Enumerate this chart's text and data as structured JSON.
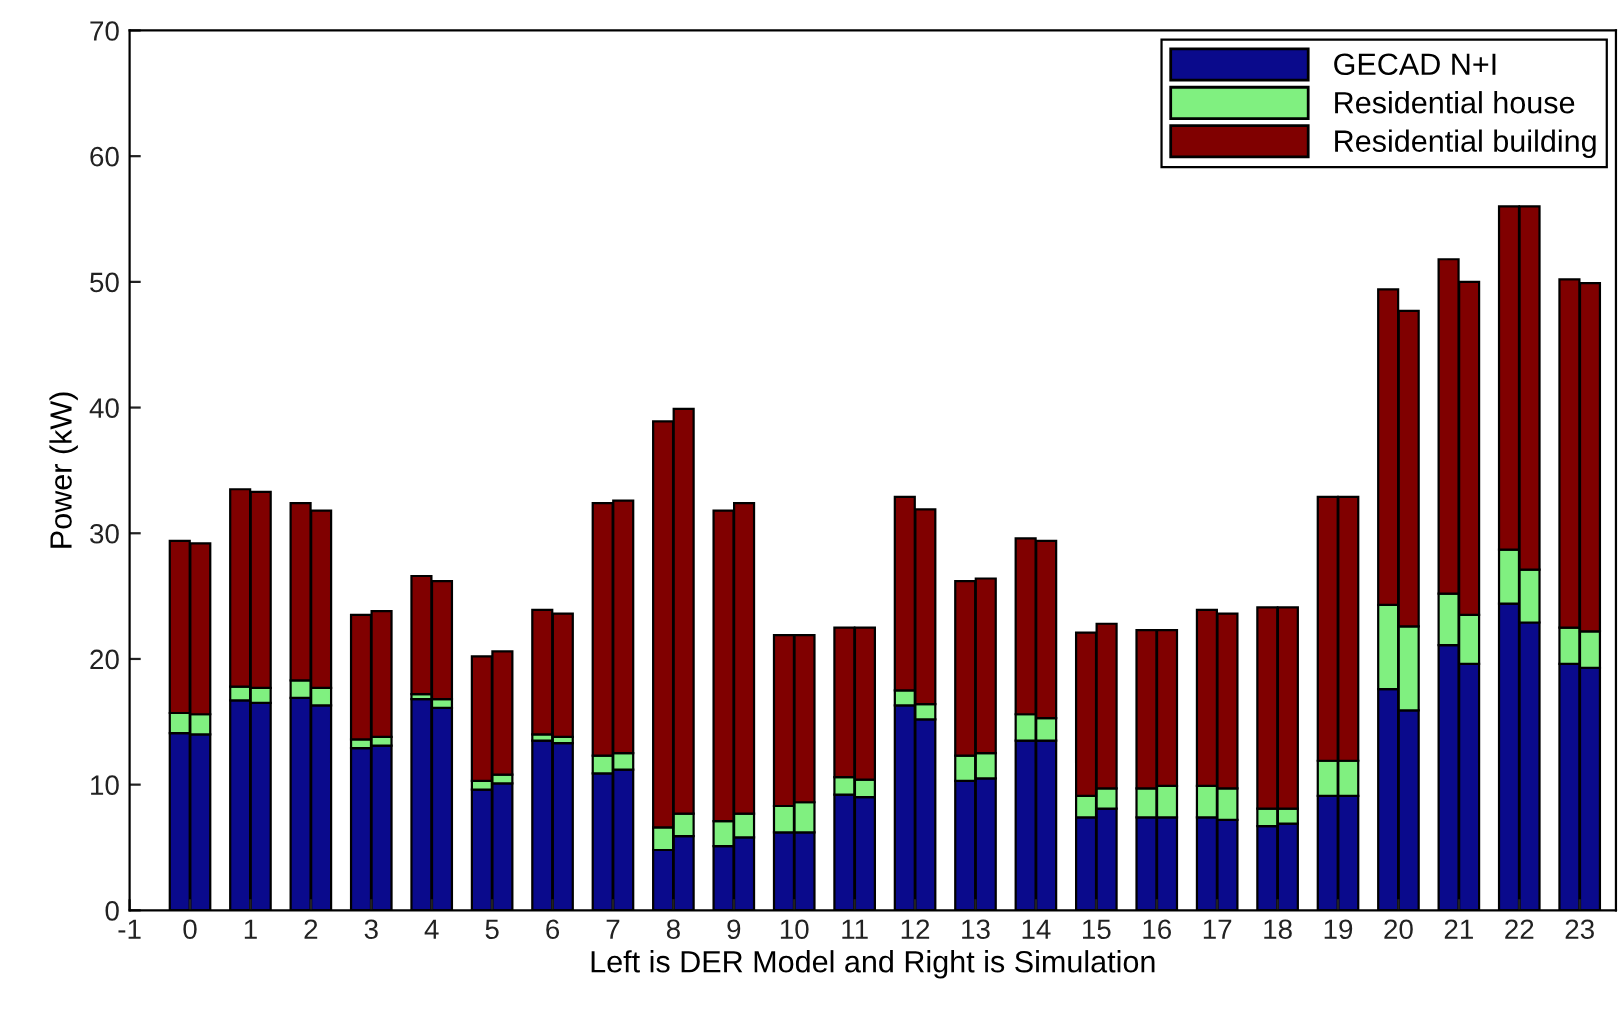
{
  "chart_data": {
    "type": "bar",
    "stacked": true,
    "xlabel": "Left is DER Model and Right is Simulation",
    "ylabel": "Power (kW)",
    "xlim": [
      -1,
      23.6
    ],
    "xticks": [
      -1,
      0,
      1,
      2,
      3,
      4,
      5,
      6,
      7,
      8,
      9,
      10,
      11,
      12,
      13,
      14,
      15,
      16,
      17,
      18,
      19,
      20,
      21,
      22,
      23
    ],
    "ylim": [
      0,
      70
    ],
    "yticks": [
      0,
      10,
      20,
      30,
      40,
      50,
      60,
      70
    ],
    "grid": false,
    "legend": "top right",
    "x": [
      -0.17,
      0.17,
      0.83,
      1.17,
      1.83,
      2.17,
      2.83,
      3.17,
      3.83,
      4.17,
      4.83,
      5.17,
      5.83,
      6.17,
      6.83,
      7.17,
      7.83,
      8.17,
      8.83,
      9.17,
      9.83,
      10.17,
      10.83,
      11.17,
      11.83,
      12.17,
      12.83,
      13.17,
      13.83,
      14.17,
      14.83,
      15.17,
      15.83,
      16.17,
      16.83,
      17.17,
      17.83,
      18.17,
      18.83,
      19.17,
      19.83,
      20.17,
      20.83,
      21.17,
      21.83,
      22.17,
      22.83,
      23.17
    ],
    "series": [
      {
        "name": "GECAD N+I",
        "color": "#0a0a8c",
        "values": [
          14.1,
          14.0,
          16.7,
          16.5,
          16.9,
          16.3,
          12.9,
          13.1,
          16.8,
          16.1,
          9.6,
          10.1,
          13.5,
          13.3,
          10.9,
          11.2,
          4.8,
          5.9,
          5.1,
          5.8,
          6.2,
          6.2,
          9.2,
          9.0,
          16.3,
          15.2,
          10.3,
          10.5,
          13.5,
          13.5,
          7.4,
          8.1,
          7.4,
          7.4,
          7.4,
          7.2,
          6.7,
          6.9,
          9.1,
          9.1,
          17.6,
          15.9,
          21.1,
          19.6,
          24.4,
          22.9,
          19.6,
          19.3
        ]
      },
      {
        "name": "Residential house",
        "color": "#80f080",
        "values": [
          1.6,
          1.6,
          1.1,
          1.2,
          1.4,
          1.4,
          0.7,
          0.7,
          0.4,
          0.7,
          0.7,
          0.7,
          0.5,
          0.5,
          1.4,
          1.3,
          1.8,
          1.8,
          2.0,
          1.9,
          2.1,
          2.4,
          1.4,
          1.4,
          1.2,
          1.2,
          2.0,
          2.0,
          2.1,
          1.8,
          1.7,
          1.6,
          2.3,
          2.5,
          2.5,
          2.5,
          1.4,
          1.2,
          2.8,
          2.8,
          6.7,
          6.7,
          4.1,
          3.9,
          4.3,
          4.2,
          2.9,
          2.9
        ]
      },
      {
        "name": "Residential building",
        "color": "#800000",
        "values": [
          13.7,
          13.6,
          15.7,
          15.6,
          14.1,
          14.1,
          9.9,
          10.0,
          9.4,
          9.4,
          9.9,
          9.8,
          9.9,
          9.8,
          20.1,
          20.1,
          32.3,
          32.2,
          24.7,
          24.7,
          13.6,
          13.3,
          11.9,
          12.1,
          15.4,
          15.5,
          13.9,
          13.9,
          14.0,
          14.1,
          13.0,
          13.1,
          12.6,
          12.4,
          14.0,
          13.9,
          16.0,
          16.0,
          21.0,
          21.0,
          25.1,
          25.1,
          26.6,
          26.5,
          27.3,
          28.9,
          27.7,
          27.7
        ]
      }
    ]
  }
}
